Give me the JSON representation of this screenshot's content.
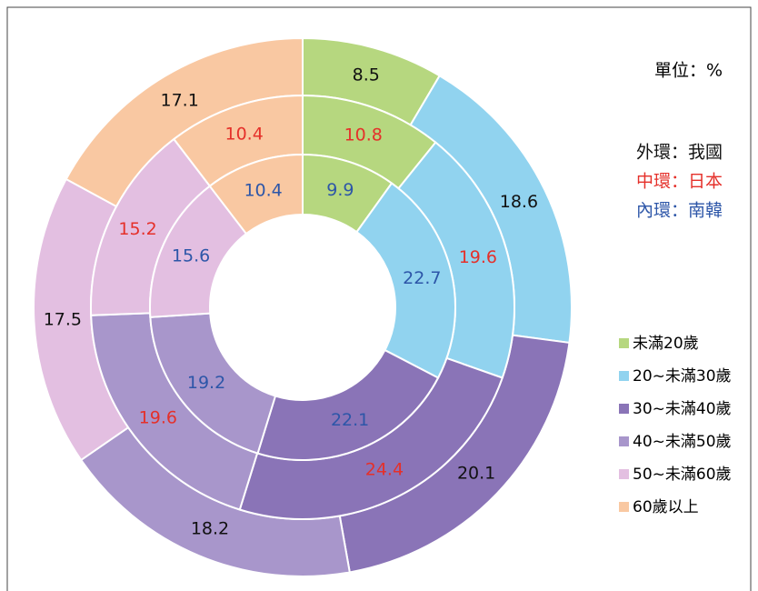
{
  "chart_data": {
    "type": "donut",
    "unit_label": "單位：%",
    "categories": [
      "未滿20歲",
      "20~未滿30歲",
      "30~未滿40歲",
      "40~未滿50歲",
      "50~未滿60歲",
      "60歲以上"
    ],
    "colors": [
      "#b6d77f",
      "#91d3ef",
      "#8a74b7",
      "#a896cb",
      "#e3bfe1",
      "#f9c8a2"
    ],
    "series": [
      {
        "name": "外環：我國",
        "color": "#111111",
        "values": [
          8.5,
          18.6,
          20.1,
          18.2,
          17.5,
          17.1
        ]
      },
      {
        "name": "中環：日本",
        "color": "#e5302a",
        "values": [
          10.8,
          19.6,
          24.4,
          19.6,
          15.2,
          10.4
        ]
      },
      {
        "name": "內環：南韓",
        "color": "#2d56a8",
        "values": [
          9.9,
          22.7,
          22.1,
          19.2,
          15.6,
          10.4
        ]
      }
    ]
  }
}
